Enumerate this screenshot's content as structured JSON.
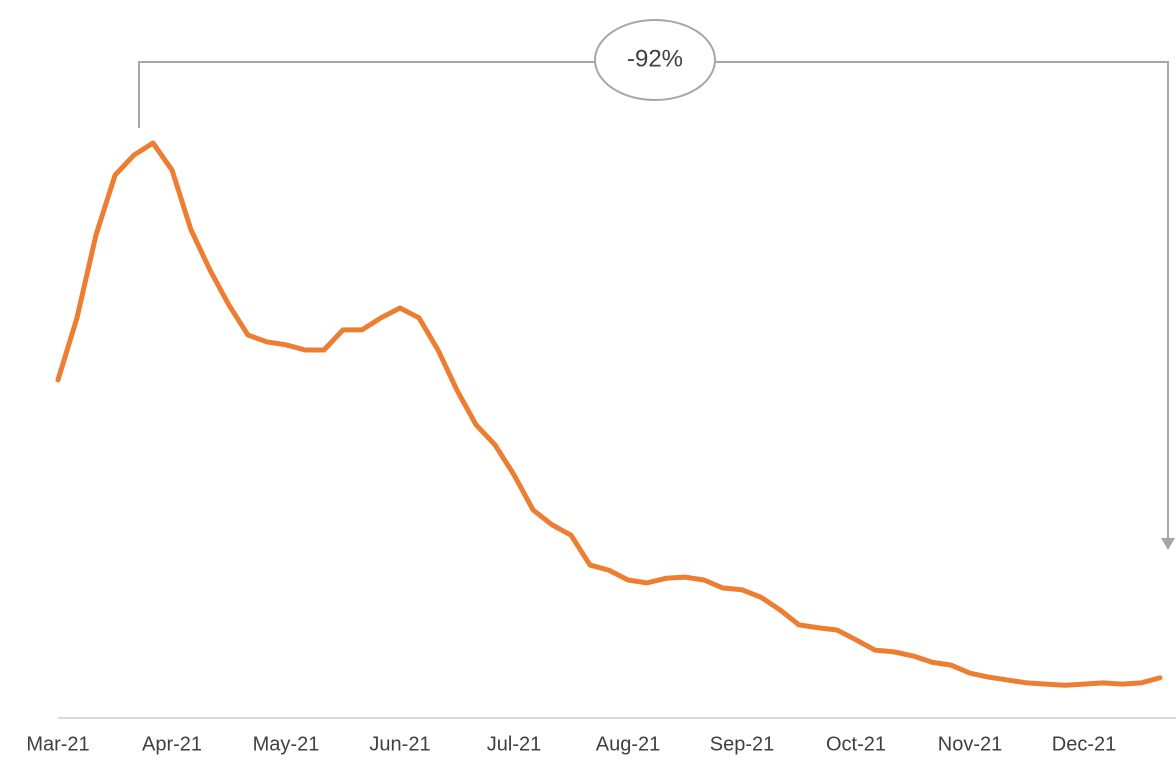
{
  "chart_data": {
    "type": "line",
    "annotation": "-92%",
    "categories": [
      "Mar-21",
      null,
      null,
      null,
      null,
      null,
      "Apr-21",
      null,
      null,
      null,
      null,
      null,
      "May-21",
      null,
      null,
      null,
      null,
      null,
      "Jun-21",
      null,
      null,
      null,
      null,
      null,
      "Jul-21",
      null,
      null,
      null,
      null,
      null,
      "Aug-21",
      null,
      null,
      null,
      null,
      null,
      "Sep-21",
      null,
      null,
      null,
      null,
      null,
      "Oct-21",
      null,
      null,
      null,
      null,
      null,
      "Nov-21",
      null,
      null,
      null,
      null,
      null,
      "Dec-21",
      null,
      null,
      null,
      null
    ],
    "series": [
      {
        "color": "#ed7d31",
        "values": [
          58.8,
          69.6,
          84,
          94.4,
          97.9,
          100,
          95.3,
          84.9,
          77.9,
          71.8,
          66.6,
          65.4,
          64.9,
          64,
          64,
          67.5,
          67.5,
          69.6,
          71.3,
          69.6,
          64,
          57,
          51,
          47.5,
          42.3,
          36.2,
          33.6,
          31.8,
          26.6,
          25.7,
          24,
          23.5,
          24.3,
          24.5,
          24,
          22.6,
          22.3,
          21,
          18.8,
          16.2,
          15.7,
          15.3,
          13.6,
          11.8,
          11.5,
          10.8,
          9.7,
          9.2,
          7.8,
          7.1,
          6.6,
          6.1,
          5.9,
          5.7,
          5.9,
          6.1,
          5.9,
          6.1,
          7
        ]
      }
    ],
    "ylim": [
      0,
      100
    ]
  }
}
